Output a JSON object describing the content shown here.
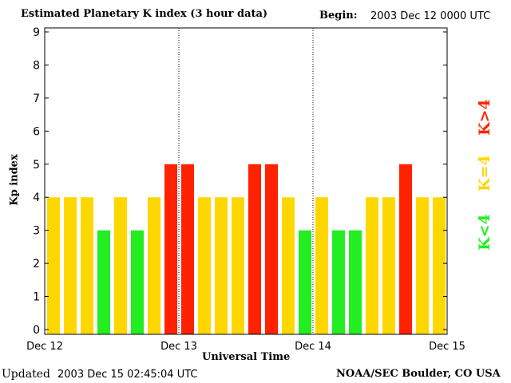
{
  "chart_data": {
    "type": "bar",
    "title": "Estimated Planetary K index (3 hour data)",
    "begin_label": "Begin:",
    "begin_value": "2003 Dec 12 0000 UTC",
    "xlabel": "Universal Time",
    "ylabel": "Kp index",
    "ylim": [
      0,
      9
    ],
    "yticks": [
      "0",
      "1",
      "2",
      "3",
      "4",
      "5",
      "6",
      "7",
      "8",
      "9"
    ],
    "xticks": [
      "Dec 12",
      "Dec 13",
      "Dec 14",
      "Dec 15"
    ],
    "values": [
      4,
      4,
      4,
      3,
      4,
      3,
      4,
      5,
      5,
      4,
      4,
      4,
      5,
      5,
      4,
      3,
      4,
      3,
      3,
      4,
      4,
      5,
      4,
      4
    ],
    "colors": {
      "low": "#22ee22",
      "mid": "#ffd700",
      "high": "#ff2200"
    },
    "legend": [
      {
        "label": "K>4",
        "color": "#ff2200"
      },
      {
        "label": "K=4",
        "color": "#ffd700"
      },
      {
        "label": "K<4",
        "color": "#22ee22"
      }
    ]
  },
  "footer": {
    "updated_label": "Updated",
    "updated_value": "2003 Dec 15 02:45:04 UTC",
    "source": "NOAA/SEC Boulder, CO USA"
  }
}
